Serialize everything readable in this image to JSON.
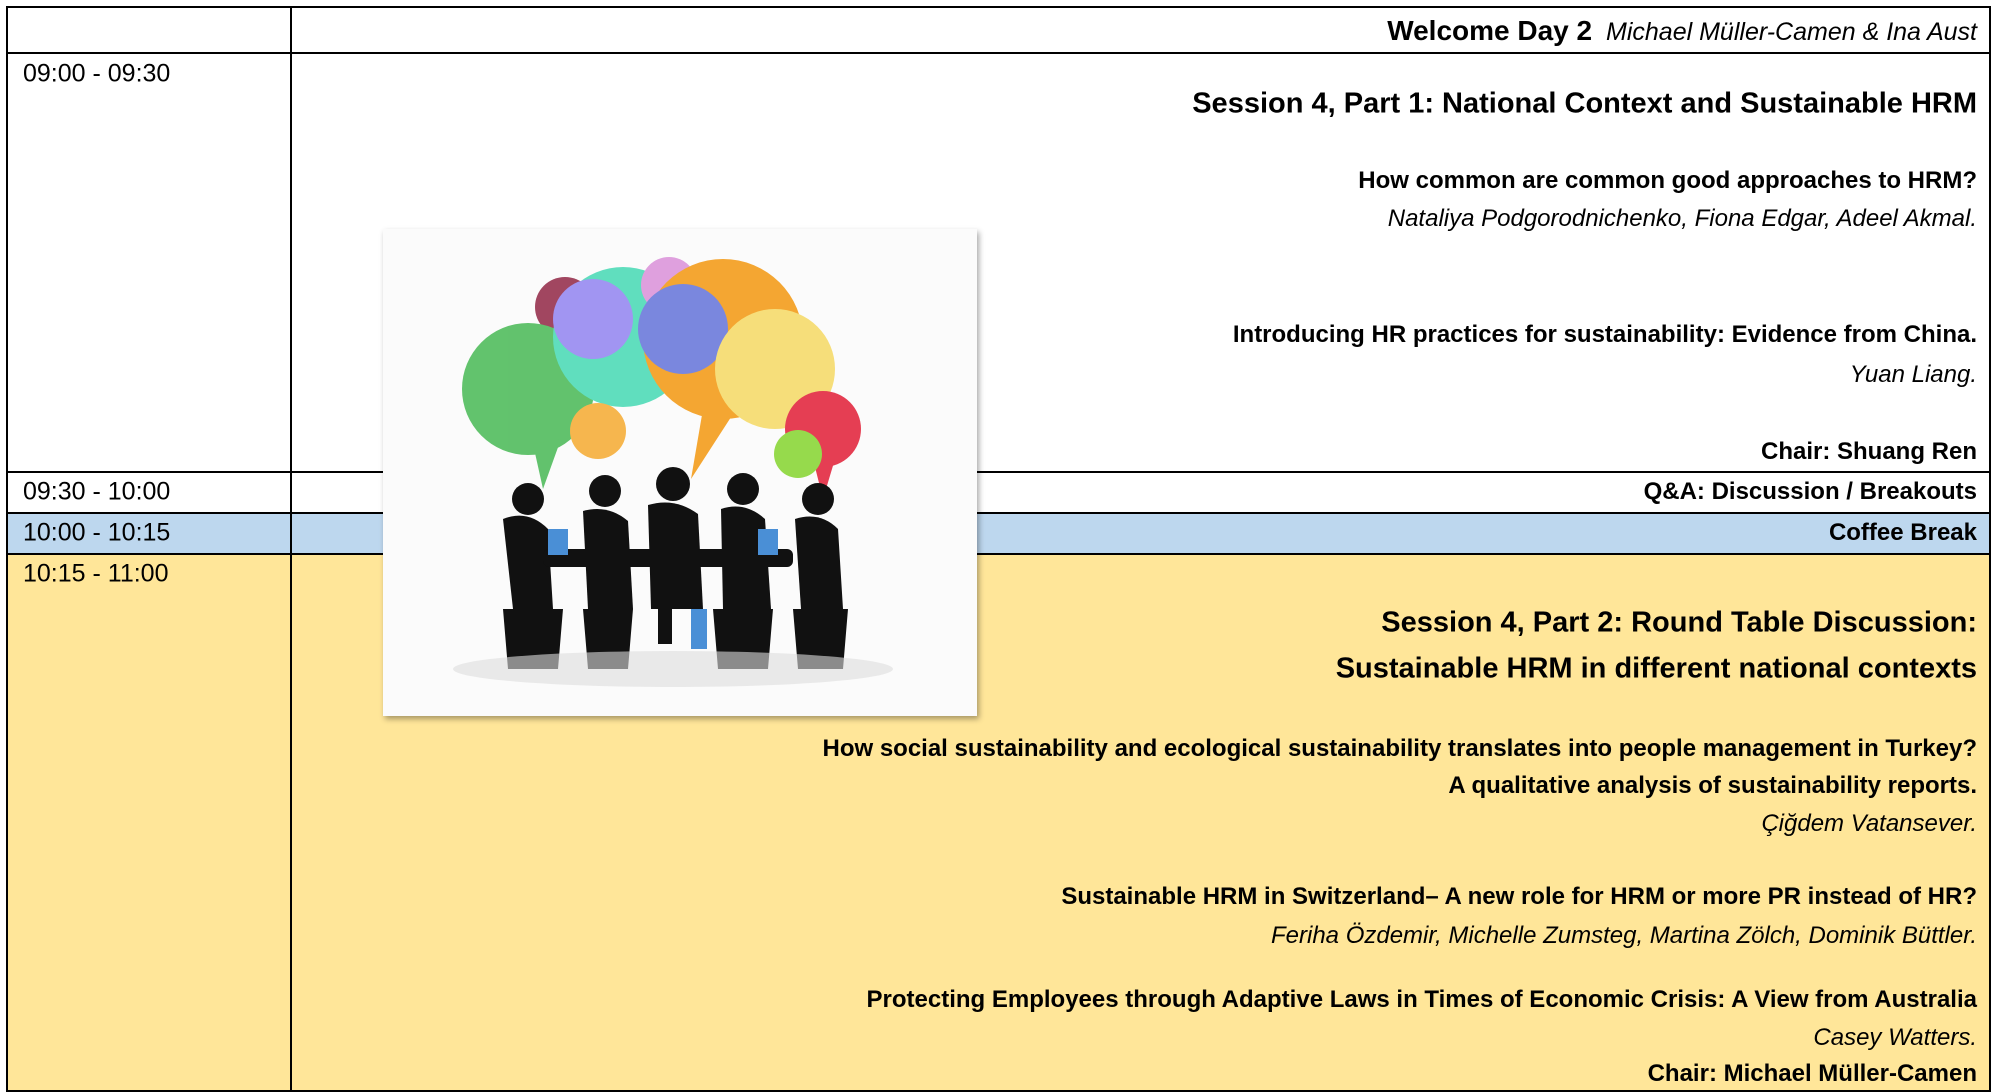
{
  "header": {
    "title": "Welcome Day 2",
    "hosts": "Michael Müller-Camen & Ina Aust"
  },
  "rows": [
    {
      "time": "09:00 - 09:30",
      "title": "Session  4, Part 1: National Context and Sustainable HRM",
      "papers": [
        {
          "title": "How common are common good approaches to HRM?",
          "authors": "Nataliya Podgorodnichenko, Fiona Edgar, Adeel Akmal."
        },
        {
          "title": "Introducing HR practices for sustainability: Evidence from China.",
          "authors": "Yuan Liang."
        }
      ],
      "chair": "Chair: Shuang Ren"
    },
    {
      "time": "09:30 - 10:00",
      "title": "Q&A: Discussion / Breakouts"
    },
    {
      "time": "10:00 - 10:15",
      "title": "Coffee Break"
    },
    {
      "time": "10:15 - 11:00",
      "title_lines": [
        "Session 4, Part 2: Round Table Discussion:",
        "Sustainable HRM in different national contexts"
      ],
      "papers": [
        {
          "title_lines": [
            "How social sustainability and ecological sustainability translates into people management in Turkey?",
            "A qualitative analysis of sustainability reports."
          ],
          "authors": "Çiğdem Vatansever."
        },
        {
          "title": "Sustainable HRM in Switzerland– A new role for HRM or more PR instead of HR?",
          "authors": "Feriha Özdemir, Michelle Zumsteg, Martina Zölch, Dominik Büttler."
        },
        {
          "title": "Protecting Employees through Adaptive Laws in Times of Economic Crisis: A View from Australia",
          "authors": "Casey Watters."
        }
      ],
      "chair": "Chair: Michael Müller-Camen"
    }
  ]
}
